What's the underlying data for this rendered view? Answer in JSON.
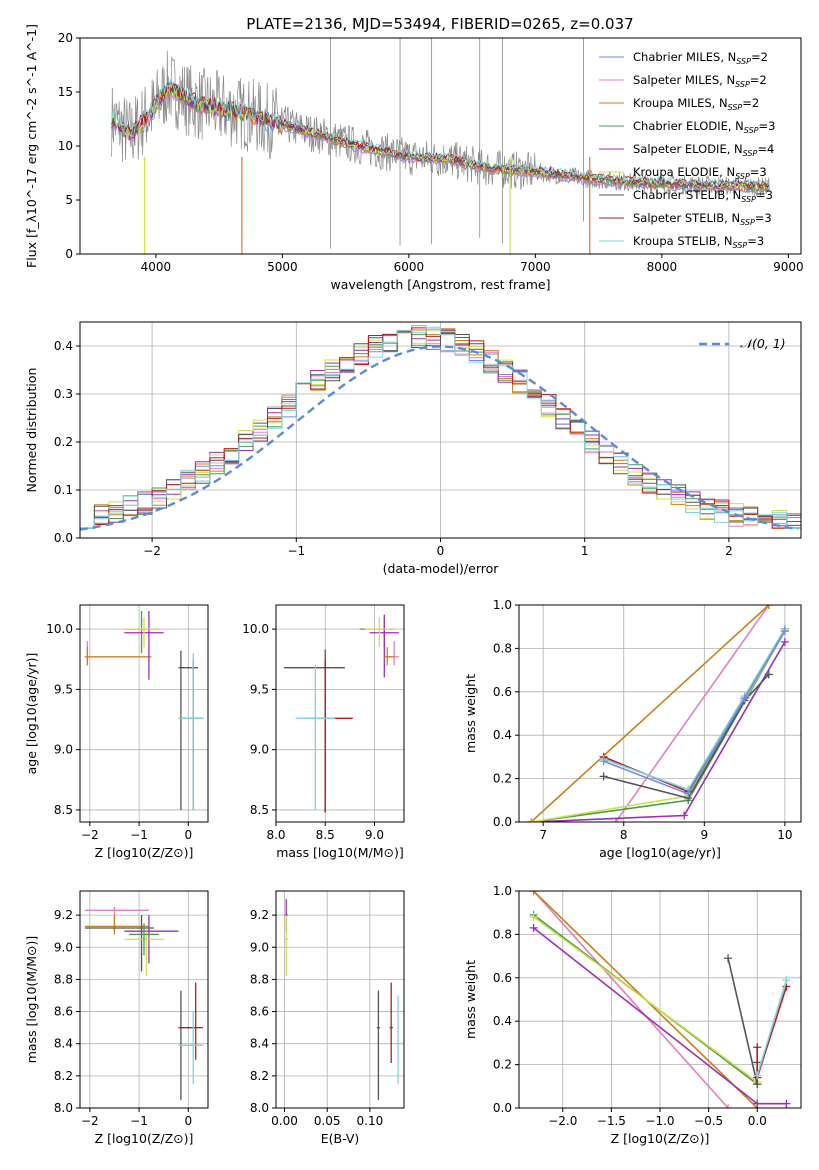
{
  "figure": {
    "title": "PLATE=2136, MJD=53494, FIBERID=0265, z=0.037"
  },
  "colors": {
    "grid": "#b0b0b0",
    "normal_curve": "#5b8bd6",
    "series": {
      "Chabrier MILES": "#6f8fd8",
      "Salpeter MILES": "#e27fbf",
      "Kroupa MILES": "#c8801e",
      "Chabrier ELODIE": "#4a9a4a",
      "Salpeter ELODIE": "#9b2fb5",
      "Kroupa ELODIE": "#cfe04a",
      "Chabrier STELIB": "#555555",
      "Salpeter STELIB": "#b51c1c",
      "Kroupa STELIB": "#7fd3dc",
      "Data": "#888888",
      "Orange": "#e0782a"
    }
  },
  "chart_data": [
    {
      "id": "spectrum",
      "type": "line",
      "title": "PLATE=2136, MJD=53494, FIBERID=0265, z=0.037",
      "xlabel": "wavelength [Angstrom, rest frame]",
      "ylabel": "Flux [f_λ10^-17 erg cm^-2 s^-1 A^-1]",
      "xlim": [
        3400,
        9100
      ],
      "ylim": [
        0,
        20
      ],
      "xticks": [
        4000,
        5000,
        6000,
        7000,
        8000,
        9000
      ],
      "yticks": [
        0,
        5,
        10,
        15,
        20
      ],
      "grid": false,
      "legend_position": "top-right",
      "legend": [
        {
          "name": "Chabrier MILES",
          "nssp": "2"
        },
        {
          "name": "Salpeter MILES",
          "nssp": "2"
        },
        {
          "name": "Kroupa MILES",
          "nssp": "2"
        },
        {
          "name": "Chabrier ELODIE",
          "nssp": "3"
        },
        {
          "name": "Salpeter ELODIE",
          "nssp": "4"
        },
        {
          "name": "Kroupa ELODIE",
          "nssp": "3"
        },
        {
          "name": "Chabrier STELIB",
          "nssp": "3"
        },
        {
          "name": "Salpeter STELIB",
          "nssp": "3"
        },
        {
          "name": "Kroupa STELIB",
          "nssp": "3"
        }
      ],
      "continuum": {
        "x": [
          3650,
          3800,
          3950,
          4100,
          4300,
          4500,
          4700,
          5000,
          5300,
          5600,
          6000,
          6300,
          6600,
          7000,
          7400,
          7800,
          8200,
          8600,
          8850
        ],
        "y": [
          12.5,
          11.0,
          13.0,
          15.5,
          14.0,
          13.5,
          13.0,
          12.0,
          11.0,
          10.0,
          9.0,
          8.8,
          8.0,
          7.6,
          7.0,
          6.6,
          6.4,
          6.3,
          6.2
        ]
      }
    },
    {
      "id": "residuals",
      "type": "line",
      "xlabel": "(data-model)/error",
      "ylabel": "Normed distribution",
      "xlim": [
        -2.5,
        2.5
      ],
      "ylim": [
        0,
        0.45
      ],
      "xticks": [
        -2,
        -1,
        0,
        1,
        2
      ],
      "yticks": [
        0.0,
        0.1,
        0.2,
        0.3,
        0.4
      ],
      "grid": true,
      "legend_position": "top-right",
      "legend": [
        {
          "name": "𝒩(0, 1)"
        }
      ],
      "normal": {
        "mu": 0,
        "sigma": 1
      }
    },
    {
      "id": "age_vs_Z",
      "type": "scatter",
      "xlabel": "Z [log10(Z/Z⊙)]",
      "ylabel": "age [log10(age/yr)]",
      "xlim": [
        -2.2,
        0.4
      ],
      "ylim": [
        8.4,
        10.2
      ],
      "xticks": [
        -2,
        -1,
        0
      ],
      "yticks": [
        8.5,
        9.0,
        9.5,
        10.0
      ],
      "grid": true,
      "points": [
        {
          "s": "Salpeter MILES",
          "x": -2.05,
          "y": 9.77,
          "xe": [
            -2.1,
            -0.8
          ],
          "ye": [
            9.7,
            9.9
          ]
        },
        {
          "s": "Kroupa MILES",
          "x": -2.05,
          "y": 9.77,
          "xe": [
            -2.1,
            -0.75
          ],
          "ye": [
            9.7,
            9.85
          ]
        },
        {
          "s": "Chabrier ELODIE",
          "x": -0.95,
          "y": 10.0,
          "xe": [
            -1.3,
            -0.6
          ],
          "ye": [
            9.8,
            10.15
          ]
        },
        {
          "s": "Salpeter ELODIE",
          "x": -0.8,
          "y": 9.97,
          "xe": [
            -1.3,
            -0.5
          ],
          "ye": [
            9.58,
            10.15
          ]
        },
        {
          "s": "Kroupa ELODIE",
          "x": -0.9,
          "y": 10.0,
          "xe": [
            -1.3,
            -0.6
          ],
          "ye": [
            9.85,
            10.1
          ]
        },
        {
          "s": "Chabrier STELIB",
          "x": -0.15,
          "y": 9.68,
          "xe": [
            -0.2,
            0.2
          ],
          "ye": [
            8.5,
            9.82
          ]
        },
        {
          "s": "Salpeter STELIB",
          "x": 0.1,
          "y": 9.26,
          "xe": [
            -0.2,
            0.3
          ],
          "ye": [
            8.5,
            9.75
          ]
        },
        {
          "s": "Kroupa STELIB",
          "x": 0.1,
          "y": 9.26,
          "xe": [
            -0.2,
            0.3
          ],
          "ye": [
            8.5,
            9.8
          ]
        }
      ]
    },
    {
      "id": "age_vs_mass",
      "type": "scatter",
      "xlabel": "mass [log10(M/M⊙)]",
      "ylabel": "",
      "xlim": [
        8.0,
        9.3
      ],
      "ylim": [
        8.4,
        10.2
      ],
      "xticks": [
        8.0,
        8.5,
        9.0
      ],
      "yticks": [
        8.5,
        9.0,
        9.5,
        10.0
      ],
      "grid": true,
      "points": [
        {
          "s": "Chabrier STELIB",
          "x": 8.5,
          "y": 9.68,
          "xe": [
            8.08,
            8.7
          ],
          "ye": [
            8.48,
            9.83
          ]
        },
        {
          "s": "Salpeter STELIB",
          "x": 8.5,
          "y": 9.26,
          "xe": [
            8.3,
            8.78
          ],
          "ye": [
            8.48,
            9.75
          ]
        },
        {
          "s": "Kroupa STELIB",
          "x": 8.4,
          "y": 9.26,
          "xe": [
            8.2,
            8.6
          ],
          "ye": [
            8.5,
            9.7
          ]
        },
        {
          "s": "Chabrier ELODIE",
          "x": 9.1,
          "y": 10.0,
          "xe": [
            8.85,
            9.2
          ],
          "ye": [
            9.85,
            10.1
          ]
        },
        {
          "s": "Salpeter ELODIE",
          "x": 9.1,
          "y": 9.97,
          "xe": [
            8.95,
            9.25
          ],
          "ye": [
            9.6,
            10.12
          ]
        },
        {
          "s": "Kroupa ELODIE",
          "x": 9.05,
          "y": 10.0,
          "xe": [
            8.9,
            9.2
          ],
          "ye": [
            9.85,
            10.1
          ]
        },
        {
          "s": "Salpeter MILES",
          "x": 9.2,
          "y": 9.77,
          "xe": [
            9.1,
            9.25
          ],
          "ye": [
            9.7,
            9.9
          ]
        },
        {
          "s": "Kroupa MILES",
          "x": 9.13,
          "y": 9.77,
          "xe": [
            9.1,
            9.2
          ],
          "ye": [
            9.7,
            9.85
          ]
        }
      ]
    },
    {
      "id": "massweight_vs_age",
      "type": "line",
      "xlabel": "age [log10(age/yr)]",
      "ylabel": "mass weight",
      "xlim": [
        6.7,
        10.2
      ],
      "ylim": [
        0,
        1
      ],
      "xticks": [
        7,
        8,
        9,
        10
      ],
      "yticks": [
        0.0,
        0.2,
        0.4,
        0.6,
        0.8,
        1.0
      ],
      "grid": true,
      "series": [
        {
          "name": "Salpeter MILES",
          "x": [
            7.9,
            9.8
          ],
          "y": [
            0.0,
            1.0
          ]
        },
        {
          "name": "Kroupa MILES",
          "x": [
            6.85,
            9.8
          ],
          "y": [
            0.0,
            1.0
          ]
        },
        {
          "name": "Chabrier ELODIE",
          "x": [
            6.85,
            8.8,
            10.0
          ],
          "y": [
            0.0,
            0.1,
            0.88
          ]
        },
        {
          "name": "Salpeter ELODIE",
          "x": [
            6.85,
            8.75,
            10.0
          ],
          "y": [
            0.0,
            0.03,
            0.83
          ]
        },
        {
          "name": "Kroupa ELODIE",
          "x": [
            6.85,
            8.8,
            10.0
          ],
          "y": [
            0.0,
            0.12,
            0.88
          ]
        },
        {
          "name": "Chabrier STELIB",
          "x": [
            7.75,
            8.8,
            9.5,
            9.8
          ],
          "y": [
            0.21,
            0.11,
            0.56,
            0.68
          ]
        },
        {
          "name": "Salpeter STELIB",
          "x": [
            7.75,
            8.8,
            9.5,
            10.0
          ],
          "y": [
            0.3,
            0.14,
            0.57,
            0.89
          ]
        },
        {
          "name": "Kroupa STELIB",
          "x": [
            7.75,
            8.8,
            9.5,
            10.0
          ],
          "y": [
            0.29,
            0.15,
            0.58,
            0.89
          ]
        },
        {
          "name": "Chabrier MILES",
          "x": [
            7.75,
            8.8,
            9.5,
            10.0
          ],
          "y": [
            0.28,
            0.13,
            0.57,
            0.88
          ]
        }
      ]
    },
    {
      "id": "mass_vs_Z",
      "type": "scatter",
      "xlabel": "Z [log10(Z/Z⊙)]",
      "ylabel": "mass [log10(M/M⊙)]",
      "xlim": [
        -2.2,
        0.4
      ],
      "ylim": [
        8.0,
        9.35
      ],
      "xticks": [
        -2,
        -1,
        0
      ],
      "yticks": [
        8.0,
        8.2,
        8.4,
        8.6,
        8.8,
        9.0,
        9.2
      ],
      "grid": true,
      "points": [
        {
          "s": "Salpeter MILES",
          "x": -1.5,
          "y": 9.23,
          "xe": [
            -2.1,
            -0.8
          ],
          "ye": [
            9.1,
            9.25
          ]
        },
        {
          "s": "Kroupa MILES",
          "x": -1.5,
          "y": 9.13,
          "xe": [
            -2.1,
            -0.8
          ],
          "ye": [
            9.08,
            9.2
          ]
        },
        {
          "s": "Chabrier STELIB",
          "x": -0.95,
          "y": 9.12,
          "xe": [
            -2.1,
            -0.7
          ],
          "ye": [
            8.85,
            9.2
          ]
        },
        {
          "s": "Salpeter ELODIE",
          "x": -0.8,
          "y": 9.1,
          "xe": [
            -1.3,
            -0.2
          ],
          "ye": [
            8.9,
            9.2
          ]
        },
        {
          "s": "Kroupa ELODIE",
          "x": -0.85,
          "y": 9.05,
          "xe": [
            -1.3,
            -0.5
          ],
          "ye": [
            8.82,
            9.1
          ]
        },
        {
          "s": "Chabrier ELODIE",
          "x": -0.9,
          "y": 9.08,
          "xe": [
            -1.2,
            -0.6
          ],
          "ye": [
            8.95,
            9.15
          ]
        },
        {
          "s": "Chabrier STELIB",
          "x": -0.15,
          "y": 8.5,
          "xe": [
            -0.2,
            0.2
          ],
          "ye": [
            8.05,
            8.73
          ]
        },
        {
          "s": "Salpeter STELIB",
          "x": 0.15,
          "y": 8.5,
          "xe": [
            -0.2,
            0.3
          ],
          "ye": [
            8.3,
            8.78
          ]
        },
        {
          "s": "Kroupa STELIB",
          "x": 0.1,
          "y": 8.39,
          "xe": [
            -0.2,
            0.3
          ],
          "ye": [
            8.15,
            8.6
          ]
        }
      ]
    },
    {
      "id": "mass_vs_EBV",
      "type": "scatter",
      "xlabel": "E(B-V)",
      "ylabel": "",
      "xlim": [
        -0.01,
        0.14
      ],
      "ylim": [
        8.0,
        9.35
      ],
      "xticks": [
        0.0,
        0.05,
        0.1
      ],
      "yticks": [
        8.0,
        8.2,
        8.4,
        8.6,
        8.8,
        9.0,
        9.2
      ],
      "grid": true,
      "points": [
        {
          "s": "Salpeter ELODIE",
          "x": 0.002,
          "y": 9.2,
          "xe": [
            0.0,
            0.004
          ],
          "ye": [
            9.1,
            9.3
          ]
        },
        {
          "s": "Kroupa ELODIE",
          "x": 0.002,
          "y": 9.05,
          "xe": [
            0.0,
            0.004
          ],
          "ye": [
            8.82,
            9.2
          ]
        },
        {
          "s": "Chabrier STELIB",
          "x": 0.11,
          "y": 8.5,
          "xe": [
            0.108,
            0.112
          ],
          "ye": [
            8.05,
            8.73
          ]
        },
        {
          "s": "Salpeter STELIB",
          "x": 0.125,
          "y": 8.5,
          "xe": [
            0.123,
            0.127
          ],
          "ye": [
            8.28,
            8.78
          ]
        },
        {
          "s": "Kroupa STELIB",
          "x": 0.133,
          "y": 8.4,
          "xe": [
            0.131,
            0.135
          ],
          "ye": [
            8.15,
            8.7
          ]
        }
      ]
    },
    {
      "id": "massweight_vs_Z",
      "type": "line",
      "xlabel": "Z [log10(Z/Z⊙)]",
      "ylabel": "mass weight",
      "xlim": [
        -2.45,
        0.45
      ],
      "ylim": [
        0,
        1
      ],
      "xticks": [
        -2.0,
        -1.5,
        -1.0,
        -0.5,
        0.0
      ],
      "yticks": [
        0.0,
        0.2,
        0.4,
        0.6,
        0.8,
        1.0
      ],
      "grid": true,
      "series": [
        {
          "name": "Salpeter MILES",
          "x": [
            -2.3,
            -0.3
          ],
          "y": [
            1.0,
            0.0
          ]
        },
        {
          "name": "Kroupa MILES",
          "x": [
            -2.3,
            0.0
          ],
          "y": [
            1.0,
            0.0
          ]
        },
        {
          "name": "Chabrier ELODIE",
          "x": [
            -2.3,
            0.0
          ],
          "y": [
            0.89,
            0.11
          ]
        },
        {
          "name": "Kroupa ELODIE",
          "x": [
            -2.3,
            0.0
          ],
          "y": [
            0.88,
            0.12
          ]
        },
        {
          "name": "Salpeter ELODIE",
          "x": [
            -2.3,
            0.0,
            0.3
          ],
          "y": [
            0.83,
            0.02,
            0.02
          ]
        },
        {
          "name": "Chabrier STELIB",
          "x": [
            -0.3,
            0.0,
            0.0
          ],
          "y": [
            0.69,
            0.11,
            0.21
          ]
        },
        {
          "name": "Salpeter STELIB",
          "x": [
            0.0,
            0.0,
            0.3
          ],
          "y": [
            0.28,
            0.14,
            0.56
          ]
        },
        {
          "name": "Kroupa STELIB",
          "x": [
            0.0,
            0.3
          ],
          "y": [
            0.15,
            0.59
          ]
        }
      ]
    }
  ]
}
